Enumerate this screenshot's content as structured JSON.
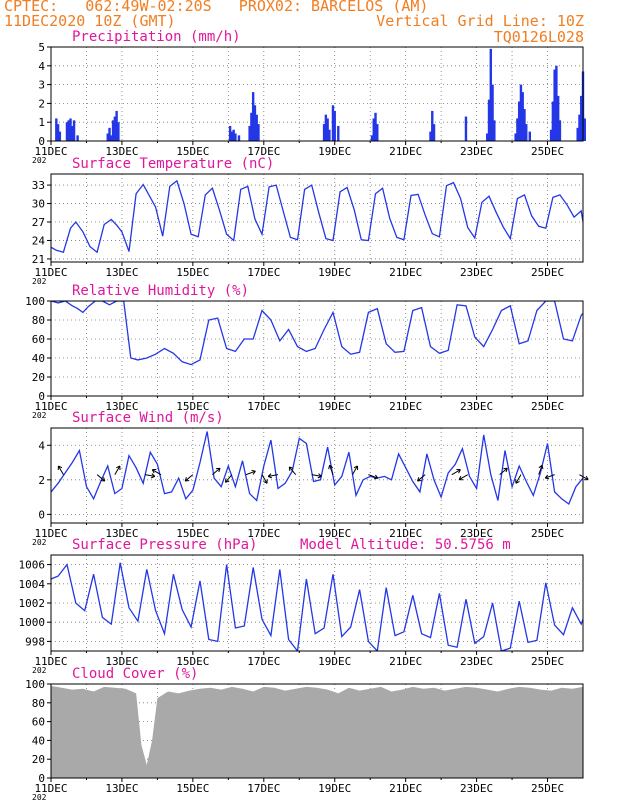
{
  "header": {
    "line1": "CPTEC:   062:49W-02:20S   PROX02: BARCELOS (AM)",
    "line2_left": "11DEC2020 10Z (GMT)",
    "line2_right": "Vertical Grid Line: 10Z",
    "line3_right": "TQ0126L028",
    "color": "#f07e22",
    "panel_title_color": "#e0179c",
    "series_color": "#2437e6",
    "cloud_color": "#a9a9a9"
  },
  "x_axis": {
    "tick_labels": [
      "11DEC",
      "13DEC",
      "15DEC",
      "17DEC",
      "19DEC",
      "21DEC",
      "23DEC",
      "25DEC"
    ],
    "tick_days": [
      0,
      2,
      4,
      6,
      8,
      10,
      12,
      14
    ],
    "range_days": [
      0,
      15
    ],
    "year_fragment": "202"
  },
  "chart_data": [
    {
      "id": "precip",
      "type": "bar",
      "title": "Precipitation (mm/h)",
      "ylim": [
        0,
        5
      ],
      "yticks": [
        0,
        1,
        2,
        3,
        4,
        5
      ],
      "points": [
        [
          0.15,
          1.2
        ],
        [
          0.2,
          0.9
        ],
        [
          0.25,
          0.5
        ],
        [
          0.45,
          1.0
        ],
        [
          0.5,
          1.1
        ],
        [
          0.55,
          1.2
        ],
        [
          0.6,
          0.8
        ],
        [
          0.65,
          1.1
        ],
        [
          0.75,
          0.3
        ],
        [
          1.6,
          0.4
        ],
        [
          1.65,
          0.7
        ],
        [
          1.7,
          0.3
        ],
        [
          1.75,
          1.1
        ],
        [
          1.8,
          1.3
        ],
        [
          1.85,
          1.6
        ],
        [
          1.9,
          1.0
        ],
        [
          5.05,
          0.8
        ],
        [
          5.1,
          0.5
        ],
        [
          5.15,
          0.6
        ],
        [
          5.2,
          0.4
        ],
        [
          5.3,
          0.3
        ],
        [
          5.6,
          0.8
        ],
        [
          5.65,
          1.5
        ],
        [
          5.7,
          2.6
        ],
        [
          5.75,
          1.9
        ],
        [
          5.8,
          1.4
        ],
        [
          5.85,
          0.9
        ],
        [
          7.7,
          0.9
        ],
        [
          7.75,
          1.4
        ],
        [
          7.8,
          1.2
        ],
        [
          7.85,
          0.6
        ],
        [
          7.95,
          1.9
        ],
        [
          8.0,
          1.6
        ],
        [
          8.1,
          0.8
        ],
        [
          9.05,
          0.3
        ],
        [
          9.1,
          1.2
        ],
        [
          9.15,
          1.5
        ],
        [
          9.2,
          0.9
        ],
        [
          10.7,
          0.5
        ],
        [
          10.75,
          1.6
        ],
        [
          10.8,
          0.9
        ],
        [
          11.7,
          1.3
        ],
        [
          12.3,
          0.4
        ],
        [
          12.35,
          2.2
        ],
        [
          12.4,
          4.9
        ],
        [
          12.45,
          3.0
        ],
        [
          12.5,
          1.1
        ],
        [
          13.1,
          0.4
        ],
        [
          13.15,
          1.2
        ],
        [
          13.2,
          2.1
        ],
        [
          13.25,
          3.0
        ],
        [
          13.3,
          2.6
        ],
        [
          13.35,
          1.7
        ],
        [
          13.4,
          0.9
        ],
        [
          13.5,
          0.5
        ],
        [
          14.1,
          0.6
        ],
        [
          14.15,
          2.1
        ],
        [
          14.2,
          3.8
        ],
        [
          14.25,
          4.0
        ],
        [
          14.3,
          2.4
        ],
        [
          14.35,
          1.1
        ],
        [
          14.85,
          0.7
        ],
        [
          14.9,
          1.4
        ],
        [
          14.95,
          2.4
        ],
        [
          15.0,
          3.7
        ],
        [
          15.05,
          1.2
        ]
      ]
    },
    {
      "id": "temp",
      "type": "line",
      "title": "Surface Temperature (nC)",
      "ylim": [
        20.5,
        34.8
      ],
      "yticks": [
        21,
        24,
        27,
        30,
        33
      ],
      "x": [
        0,
        0.15,
        0.35,
        0.55,
        0.7,
        0.9,
        1.1,
        1.3,
        1.5,
        1.7,
        1.85,
        2.0,
        2.2,
        2.4,
        2.6,
        2.8,
        2.95,
        3.15,
        3.35,
        3.55,
        3.75,
        3.95,
        4.15,
        4.35,
        4.55,
        4.75,
        4.95,
        5.15,
        5.35,
        5.55,
        5.75,
        5.95,
        6.15,
        6.35,
        6.55,
        6.75,
        6.95,
        7.15,
        7.35,
        7.55,
        7.75,
        7.95,
        8.15,
        8.35,
        8.55,
        8.75,
        8.95,
        9.15,
        9.35,
        9.55,
        9.75,
        9.95,
        10.15,
        10.35,
        10.55,
        10.75,
        10.95,
        11.15,
        11.35,
        11.55,
        11.75,
        11.95,
        12.15,
        12.35,
        12.55,
        12.75,
        12.95,
        13.15,
        13.35,
        13.55,
        13.75,
        13.95,
        14.15,
        14.35,
        14.55,
        14.75,
        14.95,
        15.0
      ],
      "y": [
        22.9,
        22.4,
        22.1,
        26.0,
        27.0,
        25.4,
        23.0,
        22.1,
        26.6,
        27.4,
        26.5,
        25.4,
        22.2,
        31.6,
        33.1,
        31.0,
        29.4,
        24.7,
        32.8,
        33.7,
        30.0,
        25.0,
        24.6,
        31.4,
        32.5,
        28.9,
        25.0,
        24.0,
        32.3,
        32.8,
        27.5,
        25.0,
        32.7,
        33.0,
        28.7,
        24.5,
        24.1,
        32.3,
        33.0,
        28.5,
        24.3,
        24.0,
        31.9,
        32.6,
        29.0,
        24.1,
        24.0,
        31.6,
        32.5,
        27.6,
        24.5,
        24.1,
        31.3,
        31.5,
        28.1,
        25.1,
        24.6,
        32.9,
        33.4,
        30.8,
        26.1,
        24.4,
        30.2,
        31.2,
        28.6,
        26.2,
        24.3,
        30.8,
        31.4,
        28.0,
        26.3,
        26.0,
        31.0,
        31.4,
        29.8,
        27.8,
        28.8,
        27.0
      ]
    },
    {
      "id": "rh",
      "type": "line",
      "title": "Relative Humidity (%)",
      "ylim": [
        0,
        100
      ],
      "yticks": [
        0,
        20,
        40,
        60,
        80,
        100
      ],
      "x": [
        0,
        0.2,
        0.4,
        0.6,
        0.75,
        0.9,
        1.05,
        1.25,
        1.45,
        1.65,
        1.85,
        2.05,
        2.25,
        2.45,
        2.7,
        2.95,
        3.2,
        3.45,
        3.7,
        3.95,
        4.2,
        4.45,
        4.7,
        4.95,
        5.2,
        5.45,
        5.7,
        5.95,
        6.2,
        6.45,
        6.7,
        6.95,
        7.2,
        7.45,
        7.7,
        7.95,
        8.2,
        8.45,
        8.7,
        8.95,
        9.2,
        9.45,
        9.7,
        9.95,
        10.2,
        10.45,
        10.7,
        10.95,
        11.2,
        11.45,
        11.7,
        11.95,
        12.2,
        12.45,
        12.7,
        12.95,
        13.2,
        13.45,
        13.7,
        13.95,
        14.2,
        14.45,
        14.7,
        14.95,
        15.0
      ],
      "y": [
        100,
        98,
        100,
        95,
        92,
        88,
        94,
        100,
        100,
        96,
        100,
        100,
        40,
        38,
        40,
        44,
        50,
        45,
        36,
        33,
        38,
        80,
        82,
        50,
        47,
        60,
        60,
        90,
        80,
        58,
        70,
        52,
        47,
        50,
        70,
        88,
        52,
        44,
        46,
        88,
        92,
        55,
        46,
        47,
        90,
        93,
        52,
        45,
        48,
        96,
        95,
        62,
        52,
        70,
        90,
        95,
        55,
        58,
        90,
        100,
        100,
        60,
        58,
        85,
        87
      ]
    },
    {
      "id": "wind",
      "type": "line",
      "title": "Surface Wind (m/s)",
      "ylim": [
        -0.5,
        5
      ],
      "yticks": [
        0,
        2,
        4
      ],
      "x": [
        0,
        0.2,
        0.4,
        0.6,
        0.8,
        1.0,
        1.2,
        1.4,
        1.6,
        1.8,
        2.0,
        2.2,
        2.4,
        2.6,
        2.8,
        3.0,
        3.2,
        3.4,
        3.6,
        3.8,
        4.0,
        4.2,
        4.4,
        4.6,
        4.8,
        5.0,
        5.2,
        5.4,
        5.6,
        5.8,
        6.0,
        6.2,
        6.4,
        6.6,
        6.8,
        7.0,
        7.2,
        7.4,
        7.6,
        7.8,
        8.0,
        8.2,
        8.4,
        8.6,
        8.8,
        9.0,
        9.2,
        9.4,
        9.6,
        9.8,
        10.0,
        10.2,
        10.4,
        10.6,
        10.8,
        11.0,
        11.2,
        11.4,
        11.6,
        11.8,
        12.0,
        12.2,
        12.4,
        12.6,
        12.8,
        13.0,
        13.2,
        13.4,
        13.6,
        13.8,
        14.0,
        14.2,
        14.4,
        14.6,
        14.8,
        15.0
      ],
      "y": [
        1.3,
        1.8,
        2.4,
        3.0,
        3.7,
        1.6,
        0.9,
        1.9,
        2.8,
        1.2,
        1.5,
        3.4,
        2.7,
        1.8,
        3.6,
        2.9,
        1.2,
        1.3,
        2.1,
        0.9,
        1.4,
        3.0,
        4.8,
        2.1,
        1.6,
        2.8,
        1.6,
        3.1,
        1.2,
        0.8,
        2.8,
        4.3,
        1.5,
        1.8,
        2.5,
        4.4,
        4.1,
        1.9,
        2.0,
        3.9,
        1.7,
        2.2,
        3.6,
        1.1,
        2.0,
        2.2,
        2.1,
        2.2,
        2.0,
        3.5,
        2.7,
        1.9,
        1.3,
        3.5,
        2.0,
        1.0,
        2.4,
        2.9,
        3.8,
        2.2,
        1.5,
        4.6,
        2.3,
        0.8,
        3.7,
        1.6,
        2.8,
        1.9,
        1.1,
        2.4,
        4.1,
        1.3,
        0.9,
        0.6,
        1.6,
        2.1
      ]
    },
    {
      "id": "pressure",
      "type": "line",
      "title": "Surface Pressure (hPa)",
      "subtitle": "Model Altitude: 50.5756  m",
      "ylim": [
        997,
        1007
      ],
      "yticks": [
        998,
        1000,
        1002,
        1004,
        1006
      ],
      "x": [
        0,
        0.2,
        0.45,
        0.7,
        0.95,
        1.2,
        1.45,
        1.7,
        1.95,
        2.2,
        2.45,
        2.7,
        2.95,
        3.2,
        3.45,
        3.7,
        3.95,
        4.2,
        4.45,
        4.7,
        4.95,
        5.2,
        5.45,
        5.7,
        5.95,
        6.2,
        6.45,
        6.7,
        6.95,
        7.2,
        7.45,
        7.7,
        7.95,
        8.2,
        8.45,
        8.7,
        8.95,
        9.2,
        9.45,
        9.7,
        9.95,
        10.2,
        10.45,
        10.7,
        10.95,
        11.2,
        11.45,
        11.7,
        11.95,
        12.2,
        12.45,
        12.7,
        12.95,
        13.2,
        13.45,
        13.7,
        13.95,
        14.2,
        14.45,
        14.7,
        14.95,
        15.0
      ],
      "y": [
        1004.5,
        1004.8,
        1006.0,
        1002.0,
        1001.2,
        1005.0,
        1000.5,
        999.8,
        1006.2,
        1001.5,
        1000.1,
        1005.5,
        1001.2,
        998.8,
        1005.0,
        1001.3,
        999.5,
        1004.3,
        998.2,
        998.0,
        1006.0,
        999.4,
        999.6,
        1005.7,
        1000.3,
        998.6,
        1005.5,
        998.2,
        997.0,
        1004.5,
        998.8,
        999.4,
        1005.0,
        998.5,
        999.5,
        1003.4,
        998.0,
        997.0,
        1003.6,
        998.6,
        999.0,
        1002.8,
        998.8,
        998.4,
        1003.0,
        997.6,
        997.4,
        1002.4,
        997.8,
        998.5,
        1002.0,
        997.0,
        997.3,
        1002.2,
        997.9,
        998.1,
        1004.1,
        999.7,
        998.7,
        1001.5,
        999.8,
        1000.3
      ]
    },
    {
      "id": "cloud",
      "type": "area",
      "title": "Cloud Cover (%)",
      "ylim": [
        0,
        100
      ],
      "yticks": [
        0,
        20,
        40,
        60,
        80,
        100
      ],
      "x": [
        0,
        0.3,
        0.6,
        0.9,
        1.2,
        1.5,
        1.8,
        2.1,
        2.4,
        2.55,
        2.7,
        2.85,
        3.0,
        3.3,
        3.6,
        3.9,
        4.2,
        4.5,
        4.8,
        5.1,
        5.4,
        5.7,
        6.0,
        6.3,
        6.6,
        6.9,
        7.2,
        7.5,
        7.8,
        8.1,
        8.4,
        8.7,
        9.0,
        9.3,
        9.6,
        9.9,
        10.2,
        10.5,
        10.8,
        11.1,
        11.4,
        11.7,
        12.0,
        12.3,
        12.6,
        12.9,
        13.2,
        13.5,
        13.8,
        14.1,
        14.4,
        14.7,
        15.0
      ],
      "y": [
        98,
        96,
        94,
        95,
        92,
        97,
        96,
        95,
        90,
        35,
        14,
        40,
        85,
        92,
        90,
        93,
        95,
        96,
        94,
        97,
        95,
        92,
        97,
        96,
        93,
        95,
        97,
        96,
        94,
        90,
        96,
        93,
        95,
        97,
        92,
        94,
        97,
        95,
        96,
        93,
        95,
        97,
        96,
        94,
        92,
        95,
        97,
        96,
        94,
        93,
        96,
        95,
        97
      ]
    }
  ]
}
